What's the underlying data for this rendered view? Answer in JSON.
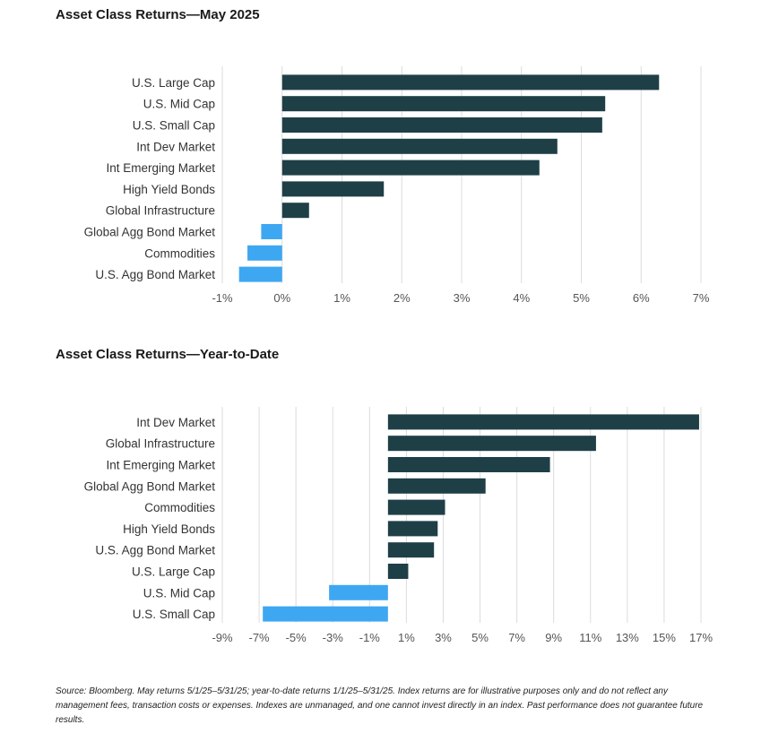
{
  "colors": {
    "positive": "#1f3f47",
    "negative": "#3ea7f2",
    "grid": "#dcdcdc"
  },
  "chart_data": [
    {
      "type": "bar",
      "orientation": "horizontal",
      "title": "Asset Class Returns—May 2025",
      "categories": [
        "U.S. Large Cap",
        "U.S. Mid Cap",
        "U.S. Small Cap",
        "Int Dev Market",
        "Int Emerging Market",
        "High Yield Bonds",
        "Global Infrastructure",
        "Global Agg Bond Market",
        "Commodities",
        "U.S. Agg Bond Market"
      ],
      "values": [
        6.3,
        5.4,
        5.35,
        4.6,
        4.3,
        1.7,
        0.45,
        -0.35,
        -0.58,
        -0.72
      ],
      "xlim": [
        -1,
        7
      ],
      "xticks": [
        -1,
        0,
        1,
        2,
        3,
        4,
        5,
        6,
        7
      ],
      "xtick_labels": [
        "-1%",
        "0%",
        "1%",
        "2%",
        "3%",
        "4%",
        "5%",
        "6%",
        "7%"
      ],
      "grid": true
    },
    {
      "type": "bar",
      "orientation": "horizontal",
      "title": "Asset Class Returns—Year-to-Date",
      "categories": [
        "Int Dev Market",
        "Global Infrastructure",
        "Int Emerging Market",
        "Global Agg Bond Market",
        "Commodities",
        "High Yield Bonds",
        "U.S. Agg Bond Market",
        "U.S. Large Cap",
        "U.S. Mid Cap",
        "U.S. Small Cap"
      ],
      "values": [
        16.9,
        11.3,
        8.8,
        5.3,
        3.1,
        2.7,
        2.5,
        1.1,
        -3.2,
        -6.8
      ],
      "xlim": [
        -9,
        17
      ],
      "xticks": [
        -9,
        -7,
        -5,
        -3,
        -1,
        1,
        3,
        5,
        7,
        9,
        11,
        13,
        15,
        17
      ],
      "xtick_labels": [
        "-9%",
        "-7%",
        "-5%",
        "-3%",
        "-1%",
        "1%",
        "3%",
        "5%",
        "7%",
        "9%",
        "11%",
        "13%",
        "15%",
        "17%"
      ],
      "grid": true
    }
  ],
  "footnote": "Source: Bloomberg. May returns 5/1/25–5/31/25; year-to-date returns 1/1/25–5/31/25. Index returns are for illustrative purposes only and do not reflect any management fees, transaction costs or expenses. Indexes are unmanaged, and one cannot invest directly in an index. Past performance does not guarantee future results."
}
